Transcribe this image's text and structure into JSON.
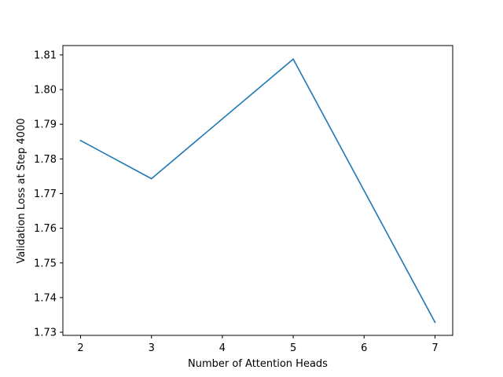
{
  "chart_data": {
    "type": "line",
    "title": "",
    "xlabel": "Number of Attention Heads",
    "ylabel": "Validation Loss at Step 4000",
    "x": [
      2,
      3,
      5,
      7
    ],
    "series": [
      {
        "color": "#1f77b4",
        "values": [
          1.7853,
          1.7743,
          1.8088,
          1.7329
        ]
      }
    ],
    "xlim": [
      1.75,
      7.25
    ],
    "ylim": [
      1.7291,
      1.8127
    ],
    "xticks": [
      2,
      3,
      4,
      5,
      6,
      7
    ],
    "xtick_labels": [
      "2",
      "3",
      "4",
      "5",
      "6",
      "7"
    ],
    "yticks": [
      1.73,
      1.74,
      1.75,
      1.76,
      1.77,
      1.78,
      1.79,
      1.8,
      1.81
    ],
    "ytick_labels": [
      "1.73",
      "1.74",
      "1.75",
      "1.76",
      "1.77",
      "1.78",
      "1.79",
      "1.80",
      "1.81"
    ],
    "grid": false,
    "legend": "none"
  }
}
